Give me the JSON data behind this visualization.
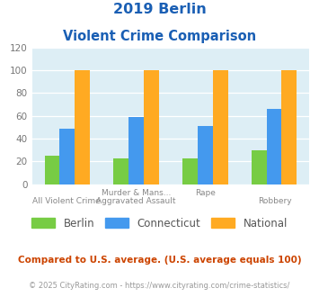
{
  "title_line1": "2019 Berlin",
  "title_line2": "Violent Crime Comparison",
  "berlin": [
    25,
    23,
    23,
    30
  ],
  "connecticut": [
    49,
    59,
    51,
    66
  ],
  "national": [
    100,
    100,
    100,
    100
  ],
  "berlin_color": "#77cc44",
  "connecticut_color": "#4499ee",
  "national_color": "#ffaa22",
  "ylim": [
    0,
    120
  ],
  "yticks": [
    0,
    20,
    40,
    60,
    80,
    100,
    120
  ],
  "background_color": "#ddeef5",
  "title_color": "#1a5fb4",
  "top_labels": [
    "",
    "Murder & Mans...",
    "Rape",
    ""
  ],
  "bottom_labels": [
    "All Violent Crime",
    "Aggravated Assault",
    "",
    "Robbery"
  ],
  "legend_labels": [
    "Berlin",
    "Connecticut",
    "National"
  ],
  "footnote1": "Compared to U.S. average. (U.S. average equals 100)",
  "footnote2": "© 2025 CityRating.com - https://www.cityrating.com/crime-statistics/",
  "footnote1_color": "#cc4400",
  "footnote2_color": "#999999"
}
